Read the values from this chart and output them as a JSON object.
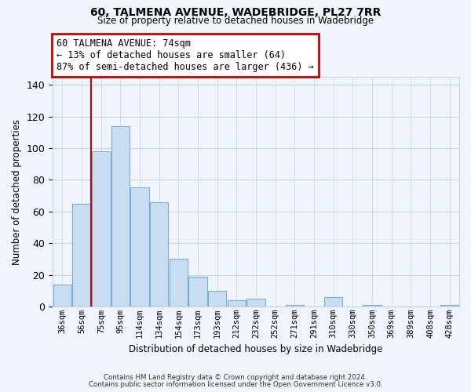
{
  "title": "60, TALMENA AVENUE, WADEBRIDGE, PL27 7RR",
  "subtitle": "Size of property relative to detached houses in Wadebridge",
  "xlabel": "Distribution of detached houses by size in Wadebridge",
  "ylabel": "Number of detached properties",
  "bar_labels": [
    "36sqm",
    "56sqm",
    "75sqm",
    "95sqm",
    "114sqm",
    "134sqm",
    "154sqm",
    "173sqm",
    "193sqm",
    "212sqm",
    "232sqm",
    "252sqm",
    "271sqm",
    "291sqm",
    "310sqm",
    "330sqm",
    "350sqm",
    "369sqm",
    "389sqm",
    "408sqm",
    "428sqm"
  ],
  "bar_heights": [
    14,
    65,
    98,
    114,
    75,
    66,
    30,
    19,
    10,
    4,
    5,
    0,
    1,
    0,
    6,
    0,
    1,
    0,
    0,
    0,
    1
  ],
  "bar_color": "#c9ddf2",
  "bar_edge_color": "#7aadd4",
  "marker_line_color": "#cc0000",
  "ylim": [
    0,
    145
  ],
  "yticks": [
    0,
    20,
    40,
    60,
    80,
    100,
    120,
    140
  ],
  "annotation_title": "60 TALMENA AVENUE: 74sqm",
  "annotation_line1": "← 13% of detached houses are smaller (64)",
  "annotation_line2": "87% of semi-detached houses are larger (436) →",
  "footnote1": "Contains HM Land Registry data © Crown copyright and database right 2024.",
  "footnote2": "Contains public sector information licensed under the Open Government Licence v3.0.",
  "background_color": "#f0f4fb",
  "plot_bg_color": "#f0f4fb",
  "grid_color": "#c8d4e8"
}
